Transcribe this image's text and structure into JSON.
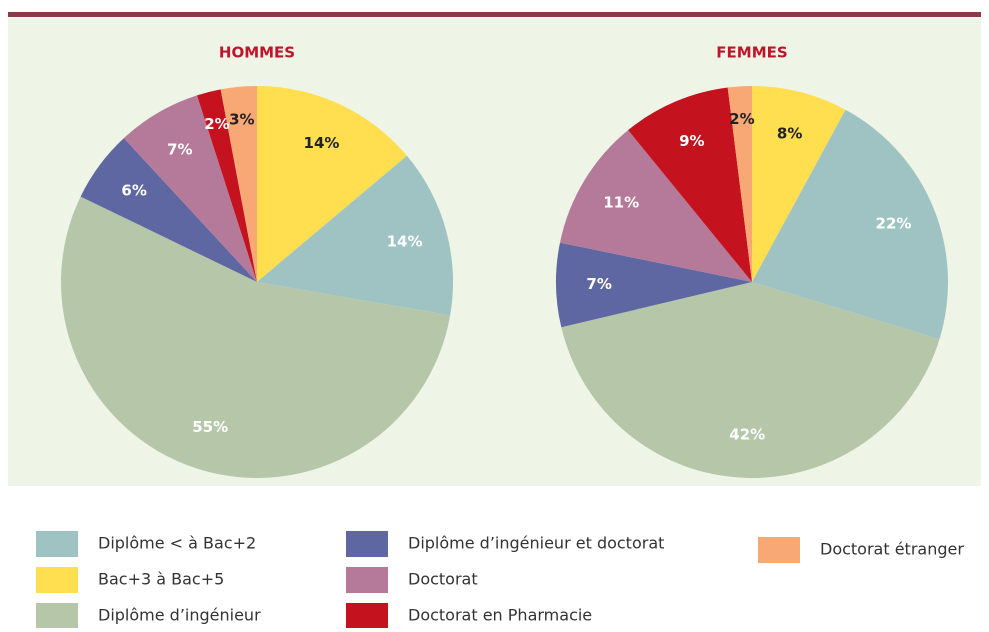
{
  "legend": [
    {
      "name": "Diplôme < à Bac+2",
      "color": "#9fc2c3"
    },
    {
      "name": "Bac+3 à Bac+5",
      "color": "#ffde4f"
    },
    {
      "name": "Diplôme d’ingénieur",
      "color": "#b5c6a9"
    },
    {
      "name": "Diplôme d’ingénieur et doctorat",
      "color": "#5e67a2"
    },
    {
      "name": "Doctorat",
      "color": "#b57a99"
    },
    {
      "name": "Doctorat en Pharmacie",
      "color": "#c4121f"
    },
    {
      "name": "Doctorat étranger",
      "color": "#f8a874"
    }
  ],
  "chart_data": [
    {
      "type": "pie",
      "title": "HOMMES",
      "values": [
        14,
        14,
        55,
        6,
        7,
        2,
        3
      ],
      "value_labels": [
        "14%",
        "14%",
        "55%",
        "6%",
        "7%",
        "2%",
        "3%"
      ]
    },
    {
      "type": "pie",
      "title": "FEMMES",
      "values": [
        22,
        8,
        42,
        7,
        11,
        9,
        2
      ],
      "value_labels": [
        "22%",
        "8%",
        "42%",
        "7%",
        "11%",
        "9%",
        "2%"
      ]
    }
  ]
}
